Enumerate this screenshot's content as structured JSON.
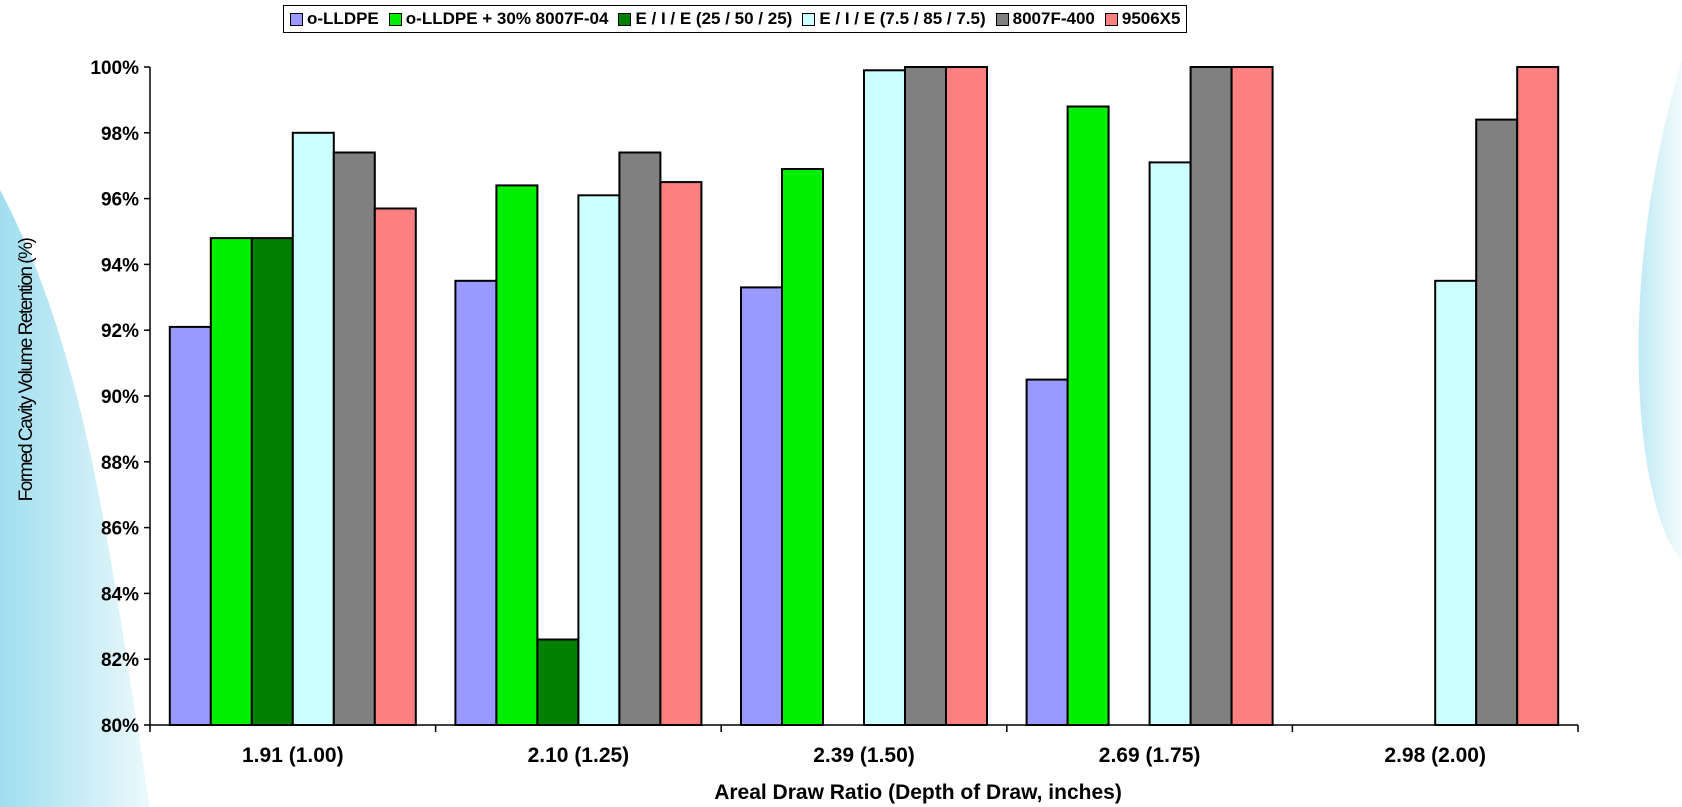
{
  "chart_data": {
    "type": "bar",
    "title": "",
    "xlabel": "Areal Draw Ratio (Depth of Draw, inches)",
    "ylabel": "Formed Cavity Volume Retention (%)",
    "ylim": [
      80,
      100
    ],
    "yticks": [
      "80%",
      "82%",
      "84%",
      "86%",
      "88%",
      "90%",
      "92%",
      "94%",
      "96%",
      "98%",
      "100%"
    ],
    "categories": [
      "1.91 (1.00)",
      "2.10 (1.25)",
      "2.39 (1.50)",
      "2.69 (1.75)",
      "2.98 (2.00)"
    ],
    "legend_position": "top",
    "grid": false,
    "series": [
      {
        "name": "o-LLDPE",
        "color": "#9999ff",
        "values": [
          92.1,
          93.5,
          93.3,
          90.5,
          null
        ]
      },
      {
        "name": "o-LLDPE + 30% 8007F-04",
        "color": "#00ee00",
        "values": [
          94.8,
          96.4,
          96.9,
          98.8,
          null
        ]
      },
      {
        "name": "E / I / E (25 / 50 / 25)",
        "color": "#008000",
        "values": [
          94.8,
          82.6,
          null,
          null,
          null
        ]
      },
      {
        "name": "E / I / E (7.5 / 85  / 7.5)",
        "color": "#ccffff",
        "values": [
          98.0,
          96.1,
          99.9,
          97.1,
          93.5
        ]
      },
      {
        "name": "8007F-400",
        "color": "#808080",
        "values": [
          97.4,
          97.4,
          100,
          100,
          98.4
        ]
      },
      {
        "name": "9506X5",
        "color": "#ff8080",
        "values": [
          95.7,
          96.5,
          100,
          100,
          100
        ]
      }
    ]
  }
}
